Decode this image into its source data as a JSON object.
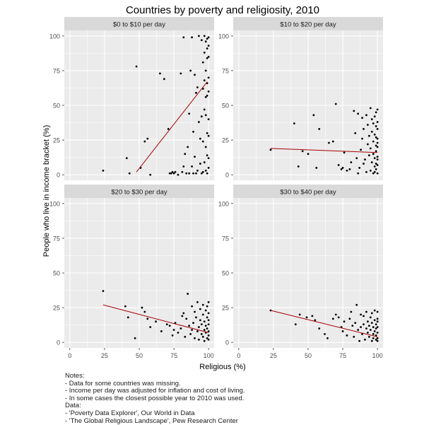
{
  "chart_data": {
    "type": "scatter",
    "title": "Countries by poverty and religiosity, 2010",
    "xlabel": "Religious (%)",
    "ylabel": "People who live in income bracket (%)",
    "xlim": [
      -4,
      104
    ],
    "ylim": [
      -4,
      104
    ],
    "xticks": [
      0,
      25,
      50,
      75,
      100
    ],
    "yticks": [
      0,
      25,
      50,
      75,
      100
    ],
    "grid": true,
    "panels": [
      {
        "label": "$0 to $10 per day",
        "trend": {
          "x": [
            48,
            99
          ],
          "y": [
            2,
            67
          ]
        },
        "points": [
          [
            24,
            3
          ],
          [
            41,
            12
          ],
          [
            43,
            1
          ],
          [
            48,
            78
          ],
          [
            51,
            5
          ],
          [
            54,
            24
          ],
          [
            56,
            26
          ],
          [
            58,
            0
          ],
          [
            65,
            73
          ],
          [
            68,
            69
          ],
          [
            71,
            33
          ],
          [
            72,
            1
          ],
          [
            73,
            1
          ],
          [
            74,
            2
          ],
          [
            75,
            1
          ],
          [
            76,
            2
          ],
          [
            78,
            0
          ],
          [
            80,
            73
          ],
          [
            81,
            2
          ],
          [
            82,
            99
          ],
          [
            82,
            6
          ],
          [
            83,
            15
          ],
          [
            84,
            1
          ],
          [
            85,
            20
          ],
          [
            86,
            44
          ],
          [
            86,
            1
          ],
          [
            87,
            75
          ],
          [
            88,
            6
          ],
          [
            88,
            99
          ],
          [
            89,
            1
          ],
          [
            89,
            31
          ],
          [
            90,
            13
          ],
          [
            90,
            72
          ],
          [
            91,
            59
          ],
          [
            91,
            1
          ],
          [
            92,
            3
          ],
          [
            92,
            63
          ],
          [
            93,
            100
          ],
          [
            93,
            38
          ],
          [
            94,
            26
          ],
          [
            94,
            8
          ],
          [
            95,
            97
          ],
          [
            95,
            42
          ],
          [
            95,
            1
          ],
          [
            96,
            81
          ],
          [
            96,
            62
          ],
          [
            96,
            24
          ],
          [
            96,
            2
          ],
          [
            97,
            100
          ],
          [
            97,
            88
          ],
          [
            97,
            68
          ],
          [
            97,
            47
          ],
          [
            97,
            9
          ],
          [
            98,
            96
          ],
          [
            98,
            75
          ],
          [
            98,
            56
          ],
          [
            98,
            43
          ],
          [
            98,
            20
          ],
          [
            98,
            3
          ],
          [
            99,
            98
          ],
          [
            99,
            91
          ],
          [
            99,
            84
          ],
          [
            99,
            66
          ],
          [
            99,
            57
          ],
          [
            99,
            30
          ],
          [
            99,
            14
          ],
          [
            99,
            1
          ],
          [
            100,
            99
          ],
          [
            100,
            93
          ],
          [
            100,
            85
          ],
          [
            100,
            70
          ],
          [
            100,
            60
          ],
          [
            100,
            40
          ],
          [
            100,
            28
          ],
          [
            100,
            12
          ],
          [
            100,
            5
          ]
        ]
      },
      {
        "label": "$10 to $20 per day",
        "trend": {
          "x": [
            23,
            100
          ],
          "y": [
            19,
            16
          ]
        },
        "points": [
          [
            23,
            18
          ],
          [
            40,
            37
          ],
          [
            43,
            6
          ],
          [
            46,
            17
          ],
          [
            50,
            15
          ],
          [
            54,
            43
          ],
          [
            56,
            5
          ],
          [
            58,
            33
          ],
          [
            65,
            23
          ],
          [
            68,
            24
          ],
          [
            70,
            51
          ],
          [
            72,
            7
          ],
          [
            74,
            4
          ],
          [
            75,
            5
          ],
          [
            76,
            16
          ],
          [
            78,
            3
          ],
          [
            80,
            4
          ],
          [
            81,
            9
          ],
          [
            83,
            46
          ],
          [
            84,
            30
          ],
          [
            85,
            12
          ],
          [
            86,
            44
          ],
          [
            86,
            1
          ],
          [
            87,
            5
          ],
          [
            88,
            18
          ],
          [
            89,
            41
          ],
          [
            89,
            26
          ],
          [
            90,
            8
          ],
          [
            90,
            33
          ],
          [
            91,
            11
          ],
          [
            92,
            2
          ],
          [
            92,
            43
          ],
          [
            93,
            22
          ],
          [
            93,
            36
          ],
          [
            94,
            14
          ],
          [
            94,
            28
          ],
          [
            95,
            3
          ],
          [
            95,
            48
          ],
          [
            95,
            19
          ],
          [
            96,
            40
          ],
          [
            96,
            9
          ],
          [
            96,
            31
          ],
          [
            97,
            1
          ],
          [
            97,
            24
          ],
          [
            97,
            37
          ],
          [
            97,
            15
          ],
          [
            98,
            6
          ],
          [
            98,
            29
          ],
          [
            98,
            42
          ],
          [
            98,
            12
          ],
          [
            98,
            2
          ],
          [
            99,
            35
          ],
          [
            99,
            21
          ],
          [
            99,
            8
          ],
          [
            99,
            45
          ],
          [
            99,
            17
          ],
          [
            99,
            27
          ],
          [
            99,
            4
          ],
          [
            100,
            38
          ],
          [
            100,
            33
          ],
          [
            100,
            26
          ],
          [
            100,
            20
          ],
          [
            100,
            13
          ],
          [
            100,
            7
          ],
          [
            100,
            1
          ],
          [
            100,
            47
          ],
          [
            100,
            11
          ],
          [
            100,
            23
          ]
        ]
      },
      {
        "label": "$20 to $30 per day",
        "trend": {
          "x": [
            24,
            100
          ],
          "y": [
            27,
            7
          ]
        },
        "points": [
          [
            24,
            37
          ],
          [
            40,
            26
          ],
          [
            42,
            18
          ],
          [
            47,
            3
          ],
          [
            52,
            25
          ],
          [
            54,
            22
          ],
          [
            56,
            17
          ],
          [
            58,
            11
          ],
          [
            62,
            15
          ],
          [
            66,
            8
          ],
          [
            70,
            13
          ],
          [
            72,
            12
          ],
          [
            74,
            5
          ],
          [
            75,
            9
          ],
          [
            76,
            14
          ],
          [
            78,
            7
          ],
          [
            80,
            10
          ],
          [
            81,
            19
          ],
          [
            82,
            21
          ],
          [
            83,
            4
          ],
          [
            84,
            17
          ],
          [
            85,
            35
          ],
          [
            86,
            12
          ],
          [
            87,
            6
          ],
          [
            88,
            26
          ],
          [
            88,
            9
          ],
          [
            89,
            14
          ],
          [
            90,
            3
          ],
          [
            90,
            22
          ],
          [
            91,
            18
          ],
          [
            92,
            8
          ],
          [
            92,
            29
          ],
          [
            93,
            11
          ],
          [
            93,
            2
          ],
          [
            94,
            16
          ],
          [
            94,
            24
          ],
          [
            95,
            6
          ],
          [
            95,
            13
          ],
          [
            96,
            20
          ],
          [
            96,
            4
          ],
          [
            96,
            27
          ],
          [
            97,
            9
          ],
          [
            97,
            15
          ],
          [
            97,
            1
          ],
          [
            98,
            23
          ],
          [
            98,
            7
          ],
          [
            98,
            12
          ],
          [
            99,
            18
          ],
          [
            99,
            3
          ],
          [
            99,
            26
          ],
          [
            99,
            10
          ],
          [
            100,
            29
          ],
          [
            100,
            16
          ],
          [
            100,
            8
          ],
          [
            100,
            21
          ],
          [
            100,
            2
          ],
          [
            100,
            13
          ],
          [
            100,
            5
          ]
        ]
      },
      {
        "label": "$30 to $40 per day",
        "trend": {
          "x": [
            23,
            100
          ],
          "y": [
            23,
            4
          ]
        },
        "points": [
          [
            23,
            23
          ],
          [
            41,
            13
          ],
          [
            44,
            20
          ],
          [
            49,
            18
          ],
          [
            53,
            19
          ],
          [
            55,
            16
          ],
          [
            58,
            10
          ],
          [
            62,
            6
          ],
          [
            64,
            3
          ],
          [
            68,
            17
          ],
          [
            70,
            20
          ],
          [
            72,
            18
          ],
          [
            74,
            11
          ],
          [
            75,
            8
          ],
          [
            76,
            15
          ],
          [
            78,
            5
          ],
          [
            80,
            17
          ],
          [
            81,
            22
          ],
          [
            82,
            12
          ],
          [
            83,
            4
          ],
          [
            84,
            14
          ],
          [
            85,
            27
          ],
          [
            86,
            9
          ],
          [
            87,
            1
          ],
          [
            88,
            20
          ],
          [
            88,
            11
          ],
          [
            89,
            6
          ],
          [
            90,
            13
          ],
          [
            90,
            19
          ],
          [
            91,
            2
          ],
          [
            92,
            10
          ],
          [
            92,
            22
          ],
          [
            93,
            7
          ],
          [
            93,
            15
          ],
          [
            94,
            4
          ],
          [
            94,
            12
          ],
          [
            95,
            18
          ],
          [
            95,
            9
          ],
          [
            96,
            1
          ],
          [
            96,
            14
          ],
          [
            96,
            21
          ],
          [
            97,
            6
          ],
          [
            97,
            11
          ],
          [
            97,
            3
          ],
          [
            98,
            16
          ],
          [
            98,
            8
          ],
          [
            98,
            23
          ],
          [
            99,
            2
          ],
          [
            99,
            10
          ],
          [
            99,
            5
          ],
          [
            99,
            13
          ],
          [
            100,
            22
          ],
          [
            100,
            7
          ],
          [
            100,
            15
          ],
          [
            100,
            3
          ],
          [
            100,
            11
          ],
          [
            100,
            1
          ],
          [
            100,
            17
          ]
        ]
      }
    ]
  },
  "notes": {
    "lines": [
      "Notes:",
      "- Data for some countries was missing.",
      "- Income per day was adjusted for inflation and cost of living.",
      "- In some cases the closest possible year to 2010 was used.",
      "Data:",
      "- 'Poverty Data Explorer', Our World in Data",
      "- 'The Global Religious Landscape', Pew Research Center"
    ]
  }
}
